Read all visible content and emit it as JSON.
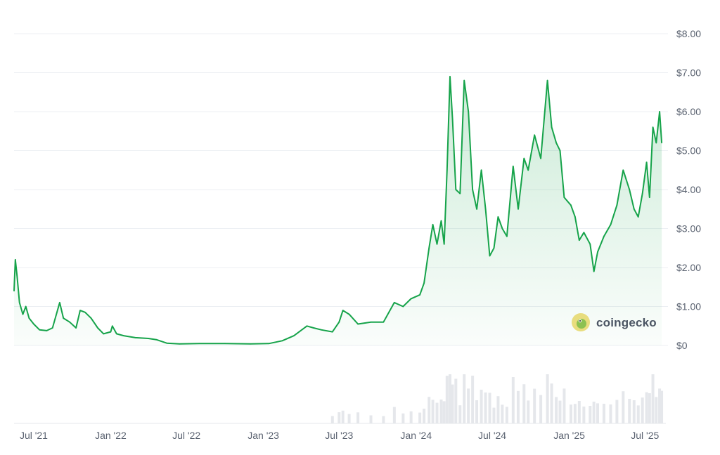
{
  "chart_data": {
    "type": "area",
    "title": "",
    "xlabel": "",
    "ylabel": "",
    "ylim": [
      0,
      8
    ],
    "y_ticks": [
      "$0",
      "$1.00",
      "$2.00",
      "$3.00",
      "$4.00",
      "$5.00",
      "$6.00",
      "$7.00",
      "$8.00"
    ],
    "x_ticks": [
      {
        "label": "Jul '21",
        "date": "2021-07-01"
      },
      {
        "label": "Jan '22",
        "date": "2022-01-01"
      },
      {
        "label": "Jul '22",
        "date": "2022-07-01"
      },
      {
        "label": "Jan '23",
        "date": "2023-01-01"
      },
      {
        "label": "Jul '23",
        "date": "2023-07-01"
      },
      {
        "label": "Jan '24",
        "date": "2024-01-01"
      },
      {
        "label": "Jul '24",
        "date": "2024-07-01"
      },
      {
        "label": "Jan '25",
        "date": "2025-01-01"
      },
      {
        "label": "Jul '25",
        "date": "2025-07-01"
      }
    ],
    "x_range": [
      "2021-05-15",
      "2025-08-20"
    ],
    "grid": "horizontal",
    "legend": "none",
    "colors": {
      "line": "#16a34a",
      "fill": "#16a34a",
      "volume": "#e5e7eb",
      "grid": "#eceff3"
    },
    "series": [
      {
        "values": [
          [
            "2021-05-15",
            1.4
          ],
          [
            "2021-05-18",
            2.2
          ],
          [
            "2021-05-22",
            1.8
          ],
          [
            "2021-05-28",
            1.1
          ],
          [
            "2021-06-05",
            0.8
          ],
          [
            "2021-06-12",
            1.0
          ],
          [
            "2021-06-20",
            0.7
          ],
          [
            "2021-07-01",
            0.55
          ],
          [
            "2021-07-15",
            0.4
          ],
          [
            "2021-08-01",
            0.38
          ],
          [
            "2021-08-15",
            0.45
          ],
          [
            "2021-09-01",
            1.1
          ],
          [
            "2021-09-10",
            0.7
          ],
          [
            "2021-09-25",
            0.6
          ],
          [
            "2021-10-10",
            0.45
          ],
          [
            "2021-10-20",
            0.9
          ],
          [
            "2021-11-01",
            0.85
          ],
          [
            "2021-11-15",
            0.7
          ],
          [
            "2021-12-01",
            0.45
          ],
          [
            "2021-12-15",
            0.3
          ],
          [
            "2022-01-01",
            0.35
          ],
          [
            "2022-01-05",
            0.5
          ],
          [
            "2022-01-15",
            0.3
          ],
          [
            "2022-02-01",
            0.25
          ],
          [
            "2022-03-01",
            0.2
          ],
          [
            "2022-04-01",
            0.18
          ],
          [
            "2022-04-20",
            0.15
          ],
          [
            "2022-05-15",
            0.06
          ],
          [
            "2022-06-15",
            0.04
          ],
          [
            "2022-08-01",
            0.05
          ],
          [
            "2022-10-01",
            0.05
          ],
          [
            "2022-12-01",
            0.04
          ],
          [
            "2023-01-15",
            0.05
          ],
          [
            "2023-02-15",
            0.12
          ],
          [
            "2023-03-15",
            0.25
          ],
          [
            "2023-04-15",
            0.5
          ],
          [
            "2023-05-01",
            0.45
          ],
          [
            "2023-05-20",
            0.4
          ],
          [
            "2023-06-15",
            0.35
          ],
          [
            "2023-07-01",
            0.6
          ],
          [
            "2023-07-10",
            0.9
          ],
          [
            "2023-07-25",
            0.8
          ],
          [
            "2023-08-15",
            0.55
          ],
          [
            "2023-09-15",
            0.6
          ],
          [
            "2023-10-15",
            0.6
          ],
          [
            "2023-11-10",
            1.1
          ],
          [
            "2023-12-01",
            1.0
          ],
          [
            "2023-12-20",
            1.2
          ],
          [
            "2024-01-10",
            1.3
          ],
          [
            "2024-01-20",
            1.6
          ],
          [
            "2024-02-01",
            2.5
          ],
          [
            "2024-02-10",
            3.1
          ],
          [
            "2024-02-20",
            2.6
          ],
          [
            "2024-03-01",
            3.2
          ],
          [
            "2024-03-08",
            2.6
          ],
          [
            "2024-03-15",
            4.5
          ],
          [
            "2024-03-22",
            6.9
          ],
          [
            "2024-03-28",
            5.8
          ],
          [
            "2024-04-05",
            4.0
          ],
          [
            "2024-04-15",
            3.9
          ],
          [
            "2024-04-25",
            6.8
          ],
          [
            "2024-05-05",
            6.0
          ],
          [
            "2024-05-15",
            4.0
          ],
          [
            "2024-05-25",
            3.5
          ],
          [
            "2024-06-05",
            4.5
          ],
          [
            "2024-06-15",
            3.5
          ],
          [
            "2024-06-25",
            2.3
          ],
          [
            "2024-07-05",
            2.5
          ],
          [
            "2024-07-15",
            3.3
          ],
          [
            "2024-07-25",
            3.0
          ],
          [
            "2024-08-05",
            2.8
          ],
          [
            "2024-08-20",
            4.6
          ],
          [
            "2024-09-01",
            3.5
          ],
          [
            "2024-09-15",
            4.8
          ],
          [
            "2024-09-25",
            4.5
          ],
          [
            "2024-10-10",
            5.4
          ],
          [
            "2024-10-25",
            4.8
          ],
          [
            "2024-11-10",
            6.8
          ],
          [
            "2024-11-20",
            5.6
          ],
          [
            "2024-12-01",
            5.2
          ],
          [
            "2024-12-10",
            5.0
          ],
          [
            "2024-12-20",
            3.8
          ],
          [
            "2025-01-05",
            3.6
          ],
          [
            "2025-01-15",
            3.3
          ],
          [
            "2025-01-25",
            2.7
          ],
          [
            "2025-02-05",
            2.9
          ],
          [
            "2025-02-20",
            2.6
          ],
          [
            "2025-03-01",
            1.9
          ],
          [
            "2025-03-10",
            2.4
          ],
          [
            "2025-03-25",
            2.8
          ],
          [
            "2025-04-10",
            3.1
          ],
          [
            "2025-04-25",
            3.6
          ],
          [
            "2025-05-10",
            4.5
          ],
          [
            "2025-05-25",
            4.0
          ],
          [
            "2025-06-05",
            3.5
          ],
          [
            "2025-06-15",
            3.3
          ],
          [
            "2025-06-25",
            3.9
          ],
          [
            "2025-07-05",
            4.7
          ],
          [
            "2025-07-12",
            3.8
          ],
          [
            "2025-07-20",
            5.6
          ],
          [
            "2025-07-28",
            5.2
          ],
          [
            "2025-08-05",
            6.0
          ],
          [
            "2025-08-10",
            5.2
          ]
        ]
      }
    ]
  },
  "watermark": {
    "text": "coingecko",
    "icon": "coingecko-gecko-icon"
  }
}
